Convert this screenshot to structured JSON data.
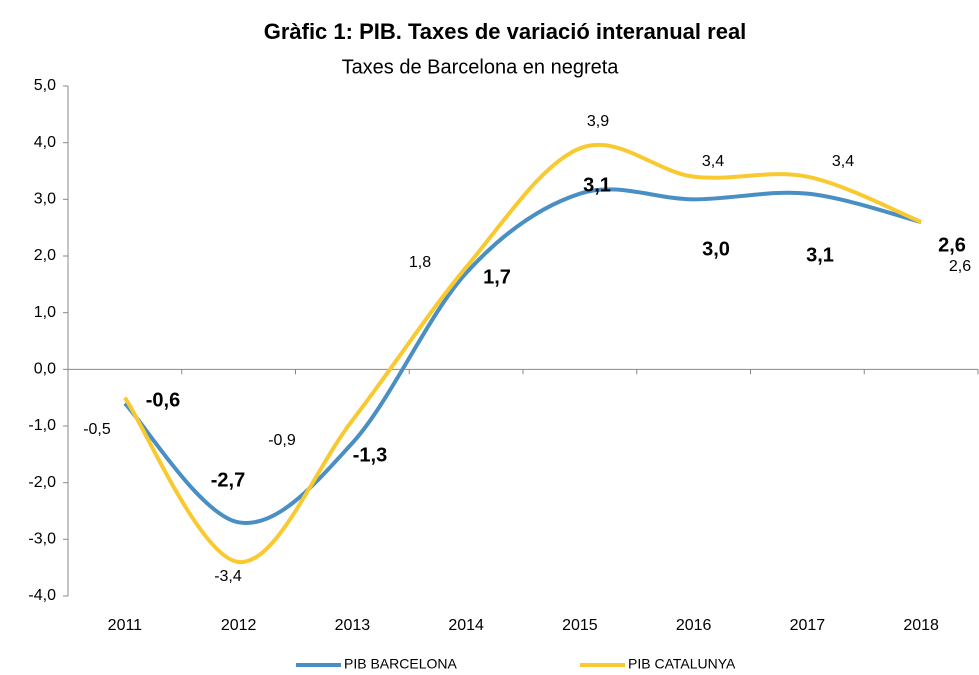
{
  "chart_data": {
    "type": "line",
    "title": "Gràfic 1: PIB. Taxes de variació interanual real",
    "subtitle": "Taxes de Barcelona en negreta",
    "categories": [
      "2011",
      "2012",
      "2013",
      "2014",
      "2015",
      "2016",
      "2017",
      "2018"
    ],
    "series": [
      {
        "name": "PIB BARCELONA",
        "color": "#4a8fc4",
        "values": [
          -0.6,
          -2.7,
          -1.3,
          1.7,
          3.1,
          3.0,
          3.1,
          2.6
        ],
        "value_labels": [
          "-0,6",
          "-2,7",
          "-1,3",
          "1,7",
          "3,1",
          "3,0",
          "3,1",
          "2,6"
        ]
      },
      {
        "name": "PIB CATALUNYA",
        "color": "#f9c930",
        "values": [
          -0.5,
          -3.4,
          -0.9,
          1.8,
          3.9,
          3.4,
          3.4,
          2.6
        ],
        "value_labels": [
          "-0,5",
          "-3,4",
          "-0,9",
          "1,8",
          "3,9",
          "3,4",
          "3,4",
          "2,6"
        ]
      }
    ],
    "ylim": [
      -4,
      5
    ],
    "yticks": [
      {
        "value": -4,
        "label": "-4,0"
      },
      {
        "value": -3,
        "label": "-3,0"
      },
      {
        "value": -2,
        "label": "-2,0"
      },
      {
        "value": -1,
        "label": "-1,0"
      },
      {
        "value": 0,
        "label": "0,0"
      },
      {
        "value": 1,
        "label": "1,0"
      },
      {
        "value": 2,
        "label": "2,0"
      },
      {
        "value": 3,
        "label": "3,0"
      },
      {
        "value": 4,
        "label": "4,0"
      },
      {
        "value": 5,
        "label": "5,0"
      }
    ],
    "legend": "bottom"
  }
}
